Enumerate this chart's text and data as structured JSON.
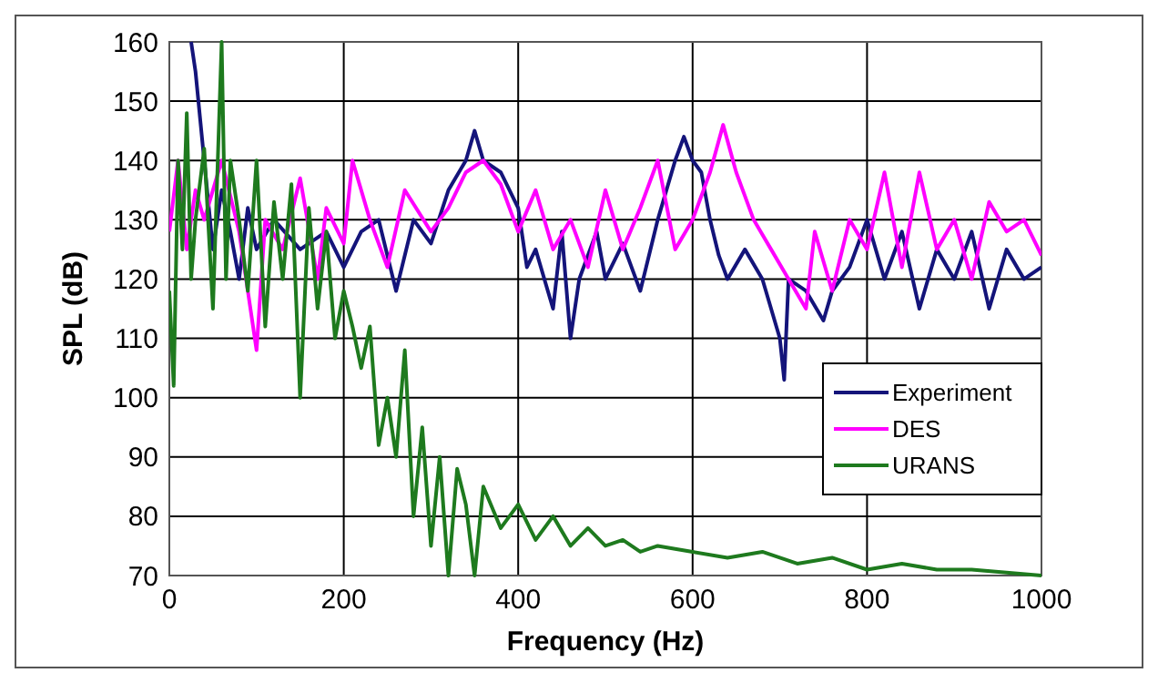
{
  "chart_data": {
    "type": "line",
    "xlabel": "Frequency (Hz)",
    "ylabel": "SPL (dB)",
    "xlim": [
      0,
      1000
    ],
    "ylim": [
      70,
      160
    ],
    "xticks": [
      0,
      200,
      400,
      600,
      800,
      1000
    ],
    "yticks": [
      70,
      80,
      90,
      100,
      110,
      120,
      130,
      140,
      150,
      160
    ],
    "grid": true,
    "legend": "right",
    "marker": "none",
    "line_style": "solid",
    "series": [
      {
        "name": "Experiment",
        "color": "#14147a",
        "x": [
          25,
          30,
          40,
          50,
          60,
          70,
          80,
          90,
          100,
          120,
          150,
          180,
          200,
          220,
          240,
          260,
          280,
          300,
          320,
          340,
          350,
          360,
          380,
          400,
          410,
          420,
          440,
          450,
          460,
          470,
          490,
          500,
          520,
          540,
          560,
          580,
          590,
          600,
          610,
          620,
          630,
          640,
          660,
          680,
          700,
          705,
          710,
          730,
          750,
          760,
          780,
          800,
          820,
          840,
          860,
          880,
          900,
          920,
          940,
          960,
          980,
          1000
        ],
        "values": [
          160,
          155,
          140,
          125,
          135,
          128,
          120,
          132,
          125,
          130,
          125,
          128,
          122,
          128,
          130,
          118,
          130,
          126,
          135,
          140,
          145,
          140,
          138,
          132,
          122,
          125,
          115,
          128,
          110,
          120,
          128,
          120,
          126,
          118,
          130,
          140,
          144,
          140,
          138,
          130,
          124,
          120,
          125,
          120,
          110,
          103,
          120,
          118,
          113,
          118,
          122,
          130,
          120,
          128,
          115,
          125,
          120,
          128,
          115,
          125,
          120,
          122
        ]
      },
      {
        "name": "DES",
        "color": "#ff00ff",
        "x": [
          0,
          10,
          20,
          30,
          40,
          60,
          80,
          100,
          110,
          130,
          150,
          170,
          180,
          200,
          210,
          230,
          250,
          270,
          300,
          320,
          340,
          360,
          380,
          400,
          420,
          440,
          460,
          480,
          500,
          520,
          540,
          560,
          580,
          600,
          620,
          635,
          650,
          670,
          690,
          710,
          730,
          740,
          760,
          780,
          800,
          820,
          840,
          860,
          880,
          900,
          920,
          940,
          960,
          980,
          1000
        ],
        "values": [
          128,
          140,
          125,
          135,
          130,
          140,
          128,
          108,
          130,
          125,
          137,
          120,
          132,
          126,
          140,
          130,
          122,
          135,
          128,
          132,
          138,
          140,
          136,
          128,
          135,
          125,
          130,
          122,
          135,
          125,
          132,
          140,
          125,
          130,
          138,
          146,
          138,
          130,
          125,
          120,
          115,
          128,
          118,
          130,
          125,
          138,
          122,
          138,
          125,
          130,
          120,
          133,
          128,
          130,
          124
        ]
      },
      {
        "name": "URANS",
        "color": "#1e7a1e",
        "x": [
          0,
          5,
          10,
          15,
          20,
          25,
          30,
          40,
          50,
          60,
          65,
          70,
          80,
          90,
          100,
          110,
          120,
          130,
          140,
          150,
          160,
          170,
          180,
          190,
          200,
          210,
          220,
          230,
          240,
          250,
          260,
          270,
          280,
          290,
          300,
          310,
          320,
          330,
          340,
          350,
          360,
          380,
          400,
          420,
          440,
          460,
          480,
          500,
          520,
          540,
          560,
          600,
          640,
          680,
          720,
          760,
          800,
          840,
          880,
          920,
          960,
          1000
        ],
        "values": [
          118,
          102,
          140,
          125,
          148,
          120,
          130,
          142,
          115,
          160,
          120,
          140,
          130,
          118,
          140,
          112,
          133,
          120,
          136,
          100,
          132,
          115,
          128,
          110,
          118,
          112,
          105,
          112,
          92,
          100,
          90,
          108,
          80,
          95,
          75,
          90,
          70,
          88,
          82,
          70,
          85,
          78,
          82,
          76,
          80,
          75,
          78,
          75,
          76,
          74,
          75,
          74,
          73,
          74,
          72,
          73,
          71,
          72,
          71,
          71,
          70.5,
          70
        ]
      }
    ]
  }
}
